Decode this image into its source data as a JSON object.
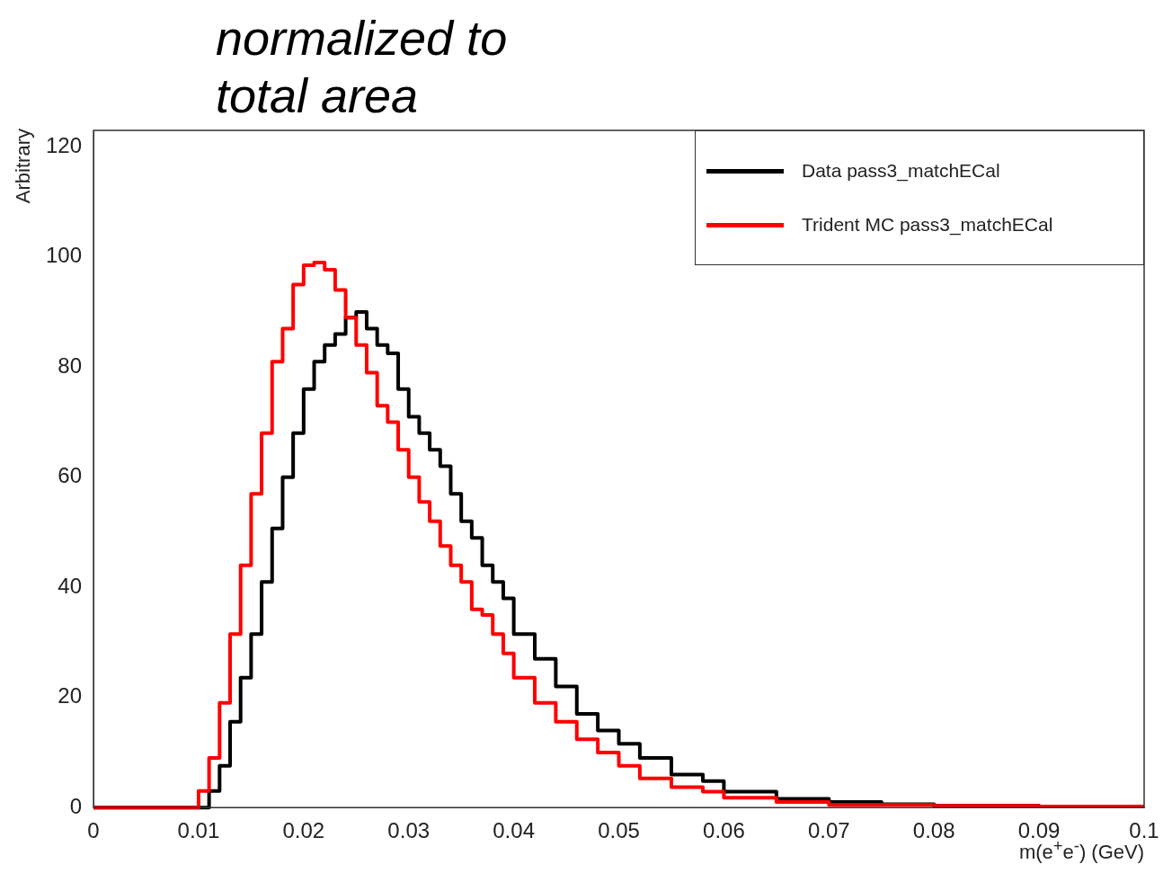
{
  "chart_data": {
    "type": "step",
    "xlabel": "m(e$^{+}$e$^{-}$) (GeV)",
    "ylabel": "Arbitrary",
    "annotations": [
      "normalized to total area"
    ],
    "xlim": [
      0,
      0.1
    ],
    "xticks": [
      0,
      0.01,
      0.02,
      0.03,
      0.04,
      0.05,
      0.06,
      0.07,
      0.08,
      0.09,
      0.1
    ],
    "ylim": [
      0,
      123
    ],
    "yticks": [
      0,
      20,
      40,
      60,
      80,
      100,
      120
    ],
    "grid": false,
    "legend": "top right",
    "series": [
      {
        "name": "Data pass3_matchECal",
        "color": "#000000",
        "x": [
          0,
          0.011,
          0.012,
          0.013,
          0.014,
          0.015,
          0.016,
          0.017,
          0.018,
          0.019,
          0.02,
          0.021,
          0.022,
          0.023,
          0.024,
          0.025,
          0.026,
          0.027,
          0.028,
          0.029,
          0.03,
          0.031,
          0.032,
          0.033,
          0.034,
          0.035,
          0.036,
          0.037,
          0.038,
          0.039,
          0.04,
          0.042,
          0.044,
          0.046,
          0.048,
          0.05,
          0.052,
          0.055,
          0.058,
          0.06,
          0.065,
          0.07,
          0.075,
          0.08,
          0.09,
          0.1
        ],
        "values": [
          0,
          0,
          3,
          7.6,
          15.6,
          23.6,
          31.5,
          41,
          50.7,
          60,
          68,
          76,
          81,
          84,
          86,
          89,
          90,
          87,
          84,
          82.5,
          76,
          71,
          68,
          65,
          62,
          57,
          52,
          49,
          44,
          41,
          38,
          31.5,
          27,
          22,
          17,
          14,
          11.6,
          9,
          6,
          4.8,
          2.9,
          1.6,
          1,
          0.6,
          0.3,
          0.2
        ]
      },
      {
        "name": "Trident MC pass3_matchECal",
        "color": "#ff0000",
        "x": [
          0,
          0.01,
          0.011,
          0.012,
          0.013,
          0.014,
          0.015,
          0.016,
          0.017,
          0.018,
          0.019,
          0.02,
          0.021,
          0.022,
          0.023,
          0.024,
          0.025,
          0.026,
          0.027,
          0.028,
          0.029,
          0.03,
          0.031,
          0.032,
          0.033,
          0.034,
          0.035,
          0.036,
          0.037,
          0.038,
          0.039,
          0.04,
          0.042,
          0.044,
          0.046,
          0.048,
          0.05,
          0.052,
          0.055,
          0.058,
          0.06,
          0.065,
          0.07,
          0.08,
          0.09,
          0.1
        ],
        "values": [
          0,
          0,
          3,
          9,
          19,
          31.5,
          44,
          57,
          68,
          81,
          87,
          95,
          98.5,
          99,
          97.7,
          94,
          89,
          84,
          79,
          73,
          70,
          65,
          60,
          55.5,
          52,
          47.5,
          44,
          41,
          36,
          35,
          31.5,
          28,
          23.6,
          19,
          15.6,
          12.4,
          10,
          7.6,
          5.3,
          3.7,
          2.9,
          1.8,
          1,
          0.5,
          0.3,
          0.2
        ]
      }
    ]
  }
}
